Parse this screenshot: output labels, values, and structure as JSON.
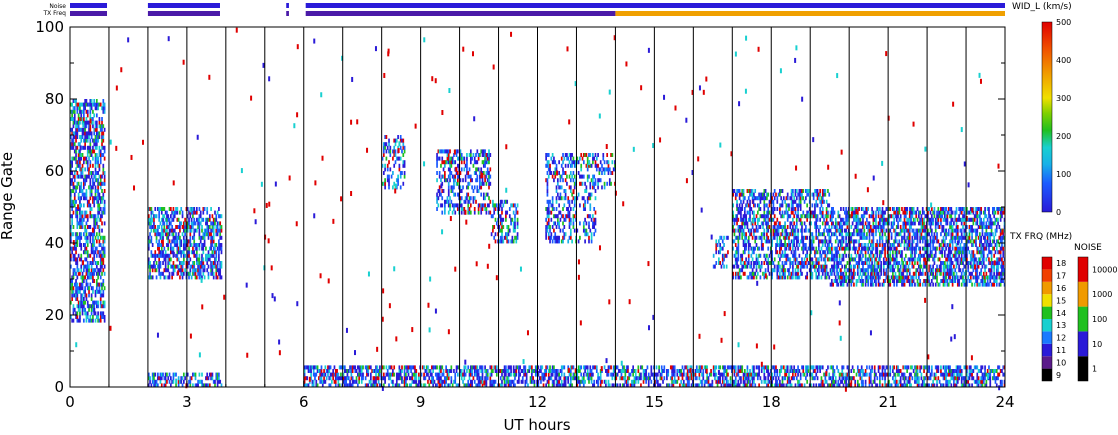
{
  "chart_data": {
    "type": "heatmap",
    "xlabel": "UT hours",
    "ylabel": "Range Gate",
    "xlim": [
      0,
      24
    ],
    "ylim": [
      0,
      100
    ],
    "xticks": [
      "0",
      "3",
      "6",
      "9",
      "12",
      "15",
      "18",
      "21",
      "24"
    ],
    "yticks": [
      "0",
      "20",
      "40",
      "60",
      "80",
      "100"
    ],
    "hour_lines": [
      1,
      2,
      3,
      4,
      5,
      6,
      7,
      8,
      9,
      10,
      11,
      12,
      13,
      14,
      15,
      16,
      17,
      18,
      19,
      20,
      21,
      22,
      23
    ],
    "status_bars": {
      "noise_label": "Noise",
      "txfreq_label": "TX Freq",
      "noise_segments": [
        {
          "start": 0.0,
          "end": 0.95,
          "color": "#2a1ad8"
        },
        {
          "start": 2.0,
          "end": 3.85,
          "color": "#2a1ad8"
        },
        {
          "start": 5.55,
          "end": 5.62,
          "color": "#2a1ad8"
        },
        {
          "start": 6.05,
          "end": 24.0,
          "color": "#2a1ad8"
        }
      ],
      "txfreq_segments": [
        {
          "start": 0.0,
          "end": 0.95,
          "color": "#4a1aa8"
        },
        {
          "start": 2.0,
          "end": 3.85,
          "color": "#4a1aa8"
        },
        {
          "start": 5.55,
          "end": 5.62,
          "color": "#4a1aa8"
        },
        {
          "start": 6.05,
          "end": 14.0,
          "color": "#4a1aa8"
        },
        {
          "start": 14.0,
          "end": 24.0,
          "color": "#f0a000"
        }
      ]
    },
    "series": [
      {
        "name": "WID_L (km/s)",
        "regions": [
          {
            "t0": 0.0,
            "t1": 0.9,
            "g0": 18,
            "g1": 80,
            "density": 0.55
          },
          {
            "t0": 2.0,
            "t1": 3.9,
            "g0": 30,
            "g1": 50,
            "density": 0.55
          },
          {
            "t0": 2.0,
            "t1": 3.9,
            "g0": 0,
            "g1": 4,
            "density": 0.5
          },
          {
            "t0": 8.0,
            "t1": 8.6,
            "g0": 55,
            "g1": 70,
            "density": 0.35
          },
          {
            "t0": 9.4,
            "t1": 10.8,
            "g0": 48,
            "g1": 66,
            "density": 0.4
          },
          {
            "t0": 10.8,
            "t1": 11.5,
            "g0": 40,
            "g1": 52,
            "density": 0.4
          },
          {
            "t0": 12.2,
            "t1": 13.5,
            "g0": 40,
            "g1": 65,
            "density": 0.35
          },
          {
            "t0": 13.5,
            "t1": 14.0,
            "g0": 55,
            "g1": 65,
            "density": 0.35
          },
          {
            "t0": 16.5,
            "t1": 16.9,
            "g0": 33,
            "g1": 42,
            "density": 0.35
          },
          {
            "t0": 17.0,
            "t1": 19.5,
            "g0": 30,
            "g1": 55,
            "density": 0.5
          },
          {
            "t0": 19.5,
            "t1": 24.0,
            "g0": 28,
            "g1": 50,
            "density": 0.6
          },
          {
            "t0": 6.0,
            "t1": 24.0,
            "g0": 0,
            "g1": 6,
            "density": 0.55
          }
        ]
      }
    ],
    "colorbar_velocity": {
      "title": "WID_L (km/s)",
      "range": [
        0,
        500
      ],
      "ticks": [
        "0",
        "100",
        "200",
        "300",
        "400",
        "500"
      ]
    },
    "colorbar_txfreq": {
      "title": "TX FRQ (MHz)",
      "ticks": [
        "9",
        "10",
        "11",
        "12",
        "13",
        "14",
        "15",
        "16",
        "17",
        "18"
      ],
      "colors": [
        "#000000",
        "#5a1a8a",
        "#2a1ad8",
        "#1a7aff",
        "#18d0d0",
        "#20c020",
        "#f0e000",
        "#f09a00",
        "#f04000",
        "#e00000"
      ]
    },
    "colorbar_noise": {
      "title": "NOISE",
      "ticks": [
        "1",
        "10",
        "100",
        "1000",
        "10000"
      ],
      "colors": [
        "#000000",
        "#2a1ad8",
        "#20c020",
        "#f09a00",
        "#e00000"
      ]
    }
  }
}
